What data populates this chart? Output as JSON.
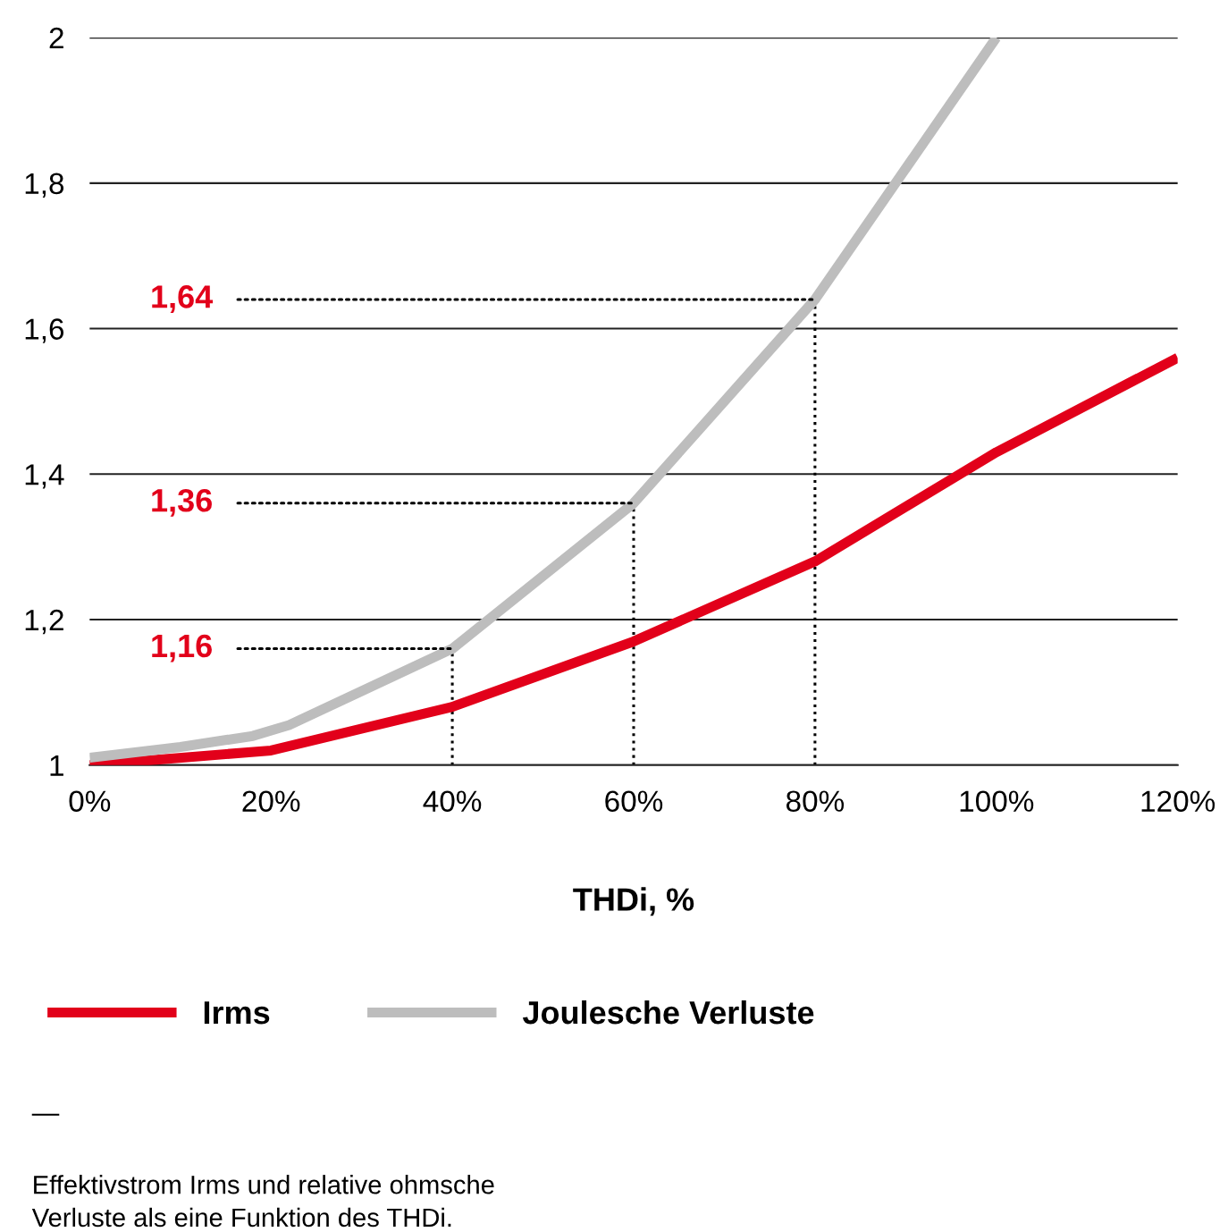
{
  "chart_data": {
    "type": "line",
    "xlabel": "THDi, %",
    "series": [
      {
        "name": "Irms",
        "color": "#e2001a",
        "x": [
          0,
          20,
          40,
          60,
          80,
          100,
          120
        ],
        "values": [
          1.0,
          1.02,
          1.08,
          1.17,
          1.28,
          1.43,
          1.56
        ]
      },
      {
        "name": "Joulesche Verluste",
        "color": "#bdbdbd",
        "x": [
          0,
          10,
          18,
          22,
          40,
          60,
          80,
          100
        ],
        "values": [
          1.01,
          1.025,
          1.04,
          1.055,
          1.16,
          1.36,
          1.64,
          2.0
        ]
      }
    ],
    "xlim": [
      0,
      120
    ],
    "ylim": [
      1,
      2
    ],
    "xticks": [
      {
        "value": 0,
        "label": "0%"
      },
      {
        "value": 20,
        "label": "20%"
      },
      {
        "value": 40,
        "label": "40%"
      },
      {
        "value": 60,
        "label": "60%"
      },
      {
        "value": 80,
        "label": "80%"
      },
      {
        "value": 100,
        "label": "100%"
      },
      {
        "value": 120,
        "label": "120%"
      }
    ],
    "yticks": [
      1,
      {
        "value": 1.2,
        "label": "1,2"
      },
      {
        "value": 1.4,
        "label": "1,4"
      },
      {
        "value": 1.6,
        "label": "1,6"
      },
      {
        "value": 1.8,
        "label": "1,8"
      },
      2
    ],
    "ref_lines": [
      {
        "axis": "x",
        "value": 40,
        "line_style": "dotted",
        "color": "#000000"
      },
      {
        "axis": "x",
        "value": 60,
        "line_style": "dotted",
        "color": "#000000"
      },
      {
        "axis": "x",
        "value": 80,
        "line_style": "dotted",
        "color": "#000000"
      }
    ],
    "grid": "y",
    "legend": "bottom",
    "marker": "none",
    "line_style": "solid",
    "annotations": [
      {
        "text": "1,16",
        "x": 40,
        "y": 1.16
      },
      {
        "text": "1,36",
        "x": 60,
        "y": 1.36
      },
      {
        "text": "1,64",
        "x": 80,
        "y": 1.64
      },
      "—",
      "Effektivstrom Irms und relative ohmsche\nVerluste als eine Funktion des THDi."
    ]
  }
}
